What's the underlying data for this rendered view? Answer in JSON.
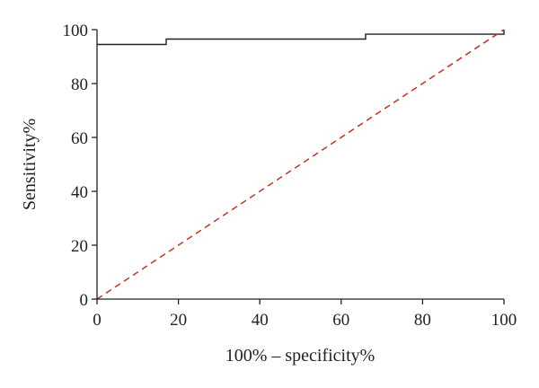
{
  "chart_data": {
    "type": "line",
    "title": "",
    "xlabel": "100% – specificity%",
    "ylabel": "Sensitivity%",
    "xlim": [
      0,
      100
    ],
    "ylim": [
      0,
      100
    ],
    "x_ticks": [
      "0",
      "20",
      "40",
      "60",
      "80",
      "100"
    ],
    "y_ticks": [
      "0",
      "20",
      "40",
      "60",
      "80",
      "100"
    ],
    "grid": false,
    "legend": "none",
    "series": [
      {
        "style": "step",
        "color": "#222222",
        "points": [
          [
            0,
            94.5
          ],
          [
            17,
            94.5
          ],
          [
            17,
            96.5
          ],
          [
            66,
            96.5
          ],
          [
            66,
            98.3
          ],
          [
            100,
            98.3
          ],
          [
            100,
            100
          ]
        ]
      },
      {
        "style": "dashed",
        "color": "#c0392b",
        "points": [
          [
            0,
            0
          ],
          [
            100,
            100
          ]
        ]
      }
    ]
  }
}
